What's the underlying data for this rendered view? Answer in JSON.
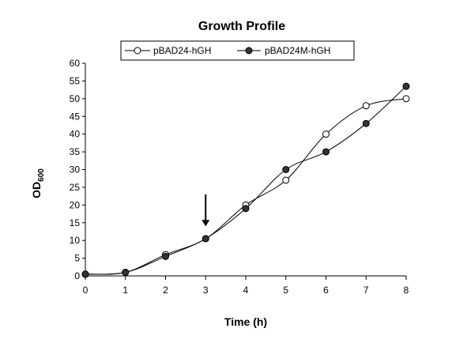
{
  "chart_data": {
    "type": "line",
    "title": "Growth Profile",
    "xlabel": "Time (h)",
    "ylabel": "OD",
    "ylabel_subscript": "600",
    "xlim": [
      0,
      8
    ],
    "ylim": [
      0,
      60
    ],
    "x_ticks": [
      "0",
      "1",
      "2",
      "3",
      "4",
      "5",
      "6",
      "7",
      "8"
    ],
    "y_ticks": [
      "0",
      "5",
      "10",
      "15",
      "20",
      "25",
      "30",
      "35",
      "40",
      "45",
      "50",
      "55",
      "60"
    ],
    "grid": false,
    "legend_position": "top",
    "series": [
      {
        "name": "pBAD24-hGH",
        "marker": "open-circle",
        "x": [
          0,
          1,
          2,
          3,
          4,
          5,
          6,
          7,
          8
        ],
        "y": [
          0.5,
          1,
          6,
          10.5,
          20,
          27,
          40,
          48,
          50
        ]
      },
      {
        "name": "pBAD24M-hGH",
        "marker": "filled-circle",
        "x": [
          0,
          1,
          2,
          3,
          4,
          5,
          6,
          7,
          8
        ],
        "y": [
          0.5,
          1,
          5.5,
          10.5,
          19,
          30,
          35,
          43,
          53.5
        ]
      }
    ],
    "annotations": [
      {
        "type": "arrow",
        "x": 3,
        "y_from": 23,
        "y_to": 14
      }
    ]
  },
  "colors": {
    "line": "#000000",
    "open_marker_fill": "#ffffff",
    "filled_marker_fill": "#333333"
  }
}
